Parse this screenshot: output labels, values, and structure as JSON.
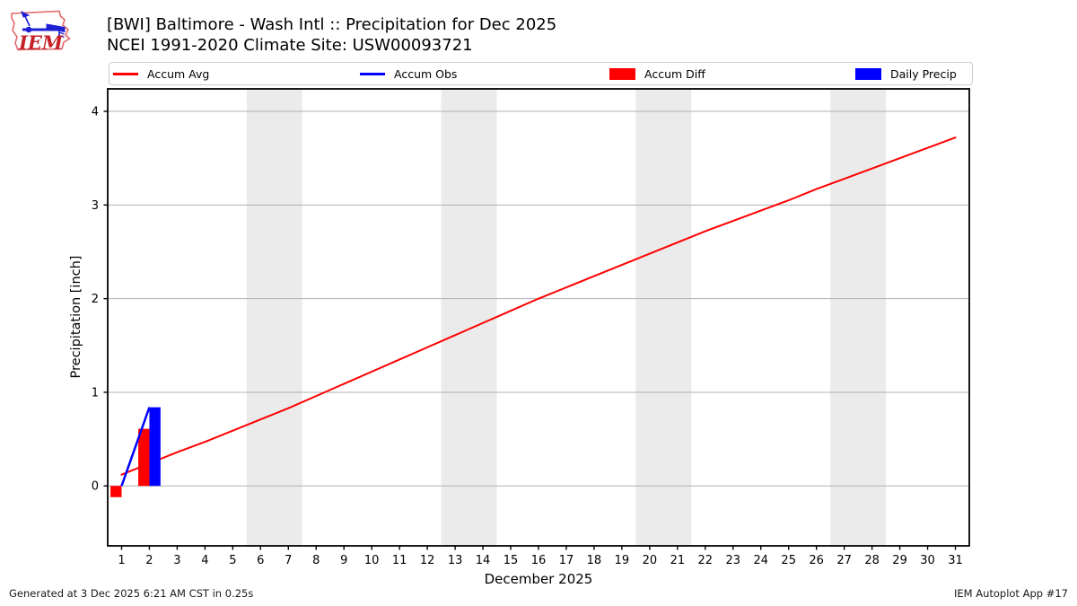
{
  "header": {
    "title_line1": "[BWI] Baltimore - Wash Intl :: Precipitation for Dec 2025",
    "title_line2": "NCEI 1991-2020 Climate Site: USW00093721",
    "logo_text": "IEM"
  },
  "legend": {
    "items": [
      {
        "label": "Accum Avg",
        "type": "line",
        "color": "#ff0000"
      },
      {
        "label": "Accum Obs",
        "type": "line",
        "color": "#0000ff"
      },
      {
        "label": "Accum Diff",
        "type": "patch",
        "color": "#ff0000"
      },
      {
        "label": "Daily Precip",
        "type": "patch",
        "color": "#0000ff"
      }
    ]
  },
  "footer": {
    "left": "Generated at 3 Dec 2025 6:21 AM CST in 0.25s",
    "right": "IEM Autoplot App #17"
  },
  "chart_data": {
    "type": "line+bar",
    "title": "[BWI] Baltimore - Wash Intl :: Precipitation for Dec 2025",
    "subtitle": "NCEI 1991-2020 Climate Site: USW00093721",
    "xlabel": "December 2025",
    "ylabel": "Precipitation [inch]",
    "xlim": [
      0.5,
      31.5
    ],
    "ylim": [
      -0.64,
      4.24
    ],
    "xticks": [
      1,
      2,
      3,
      4,
      5,
      6,
      7,
      8,
      9,
      10,
      11,
      12,
      13,
      14,
      15,
      16,
      17,
      18,
      19,
      20,
      21,
      22,
      23,
      24,
      25,
      26,
      27,
      28,
      29,
      30,
      31
    ],
    "yticks": [
      0,
      1,
      2,
      3,
      4
    ],
    "grid": "horizontal",
    "grid_color": "#b0b0b0",
    "weekend_bands": [
      [
        5.5,
        7.5
      ],
      [
        12.5,
        14.5
      ],
      [
        19.5,
        21.5
      ],
      [
        26.5,
        28.5
      ]
    ],
    "band_color": "#ebebeb",
    "series": [
      {
        "name": "Accum Avg",
        "type": "line",
        "color": "#ff0000",
        "width": 2,
        "x": [
          1,
          2,
          3,
          4,
          5,
          6,
          7,
          8,
          9,
          10,
          11,
          12,
          13,
          14,
          15,
          16,
          17,
          18,
          19,
          20,
          21,
          22,
          23,
          24,
          25,
          26,
          27,
          28,
          29,
          30,
          31
        ],
        "y": [
          0.12,
          0.24,
          0.36,
          0.47,
          0.59,
          0.71,
          0.83,
          0.96,
          1.09,
          1.22,
          1.35,
          1.48,
          1.61,
          1.74,
          1.87,
          2.0,
          2.12,
          2.24,
          2.36,
          2.48,
          2.6,
          2.72,
          2.83,
          2.94,
          3.05,
          3.17,
          3.28,
          3.39,
          3.5,
          3.61,
          3.72
        ]
      },
      {
        "name": "Accum Diff",
        "type": "bar",
        "align": "left",
        "barwidth": 0.4,
        "color": "#ff0000",
        "x": [
          1,
          2
        ],
        "y": [
          -0.12,
          0.61
        ]
      },
      {
        "name": "Daily Precip",
        "type": "bar",
        "align": "right",
        "barwidth": 0.4,
        "color": "#0000ff",
        "x": [
          1,
          2
        ],
        "y": [
          0.0,
          0.84
        ]
      },
      {
        "name": "Accum Obs",
        "type": "line",
        "color": "#0000ff",
        "width": 2.5,
        "x": [
          1,
          2
        ],
        "y": [
          0.0,
          0.84
        ]
      }
    ]
  }
}
